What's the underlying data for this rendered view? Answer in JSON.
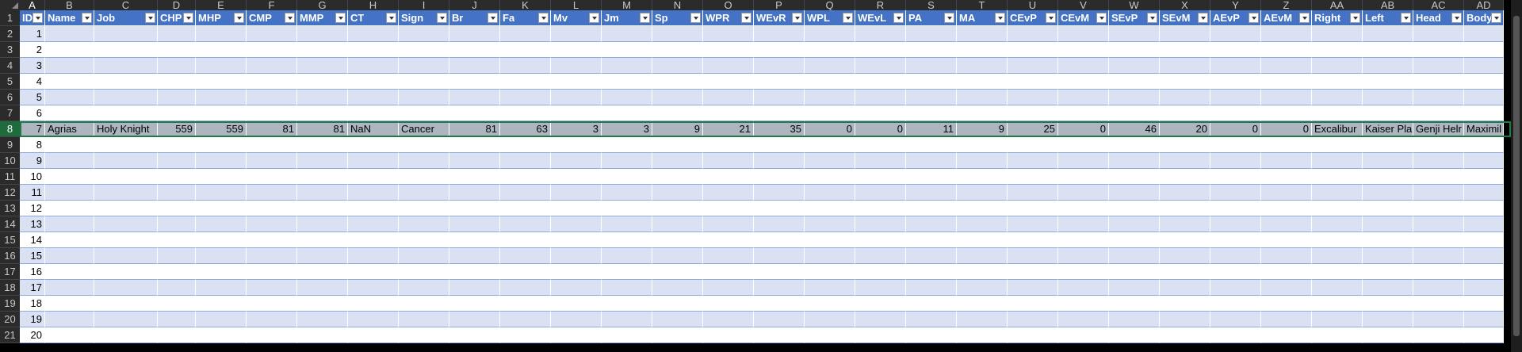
{
  "columns": [
    "A",
    "B",
    "C",
    "D",
    "E",
    "F",
    "G",
    "H",
    "I",
    "J",
    "K",
    "L",
    "M",
    "N",
    "O",
    "P",
    "Q",
    "R",
    "S",
    "T",
    "U",
    "V",
    "W",
    "X",
    "Y",
    "Z",
    "AA",
    "AB",
    "AC",
    "AD"
  ],
  "headers": [
    "ID",
    "Name",
    "Job",
    "CHP",
    "MHP",
    "CMP",
    "MMP",
    "CT",
    "Sign",
    "Br",
    "Fa",
    "Mv",
    "Jm",
    "Sp",
    "WPR",
    "WEvR",
    "WPL",
    "WEvL",
    "PA",
    "MA",
    "CEvP",
    "CEvM",
    "SEvP",
    "SEvM",
    "AEvP",
    "AEvM",
    "Right",
    "Left",
    "Head",
    "Body"
  ],
  "row_numbers": [
    "1",
    "2",
    "3",
    "4",
    "5",
    "6",
    "7",
    "8",
    "9",
    "10",
    "11",
    "12",
    "13",
    "14",
    "15",
    "16",
    "17",
    "18",
    "19",
    "20",
    "21"
  ],
  "ids": [
    "1",
    "2",
    "3",
    "4",
    "5",
    "6",
    "7",
    "8",
    "9",
    "10",
    "11",
    "12",
    "13",
    "14",
    "15",
    "16",
    "17",
    "18",
    "19",
    "20"
  ],
  "selected_record": [
    "7",
    "Agrias",
    "Holy Knight",
    "559",
    "559",
    "81",
    "81",
    "NaN",
    "Cancer",
    "81",
    "63",
    "3",
    "3",
    "9",
    "21",
    "35",
    "0",
    "0",
    "11",
    "9",
    "25",
    "0",
    "46",
    "20",
    "0",
    "0",
    "Excalibur",
    "Kaiser Pla",
    "Genji Helr",
    "Maximil"
  ]
}
